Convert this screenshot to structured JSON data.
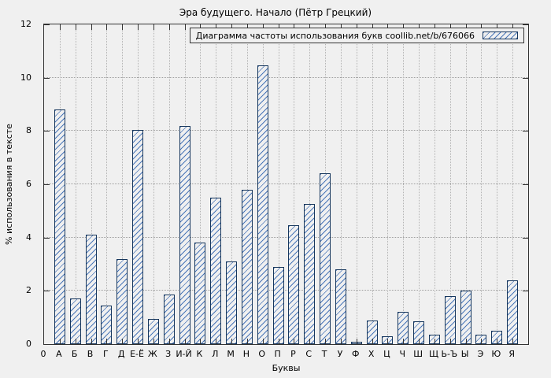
{
  "chart_data": {
    "type": "bar",
    "title": "Эра будущего. Начало (Пётр Грецкий)",
    "legend": "Диаграмма частоты использования букв coollib.net/b/676066",
    "legend_position": "top-right",
    "xlabel": "Буквы",
    "ylabel": "% использования в тексте",
    "ylim": [
      0,
      12
    ],
    "yticks": [
      0,
      2,
      4,
      6,
      8,
      10,
      12
    ],
    "grid": true,
    "categories": [
      "0",
      "А",
      "Б",
      "В",
      "Г",
      "Д",
      "Е-Ё",
      "Ж",
      "З",
      "И-Й",
      "К",
      "Л",
      "М",
      "Н",
      "О",
      "П",
      "Р",
      "С",
      "Т",
      "У",
      "Ф",
      "Х",
      "Ц",
      "Ч",
      "Ш",
      "Щ",
      "Ь-Ъ",
      "Ы",
      "Э",
      "Ю",
      "Я"
    ],
    "values": [
      0,
      8.8,
      1.7,
      4.1,
      1.45,
      3.2,
      8.05,
      0.95,
      1.85,
      8.2,
      3.8,
      5.5,
      3.1,
      5.8,
      10.45,
      2.9,
      4.45,
      5.25,
      6.4,
      2.8,
      0.1,
      0.9,
      0.3,
      1.2,
      0.85,
      0.35,
      1.8,
      2.0,
      0.35,
      0.5,
      2.4
    ],
    "colors": {
      "bar_border": "#16365c",
      "bar_hatch": "#4a76b8",
      "grid": "#9f9f9f",
      "background": "#f0f0f0"
    }
  }
}
